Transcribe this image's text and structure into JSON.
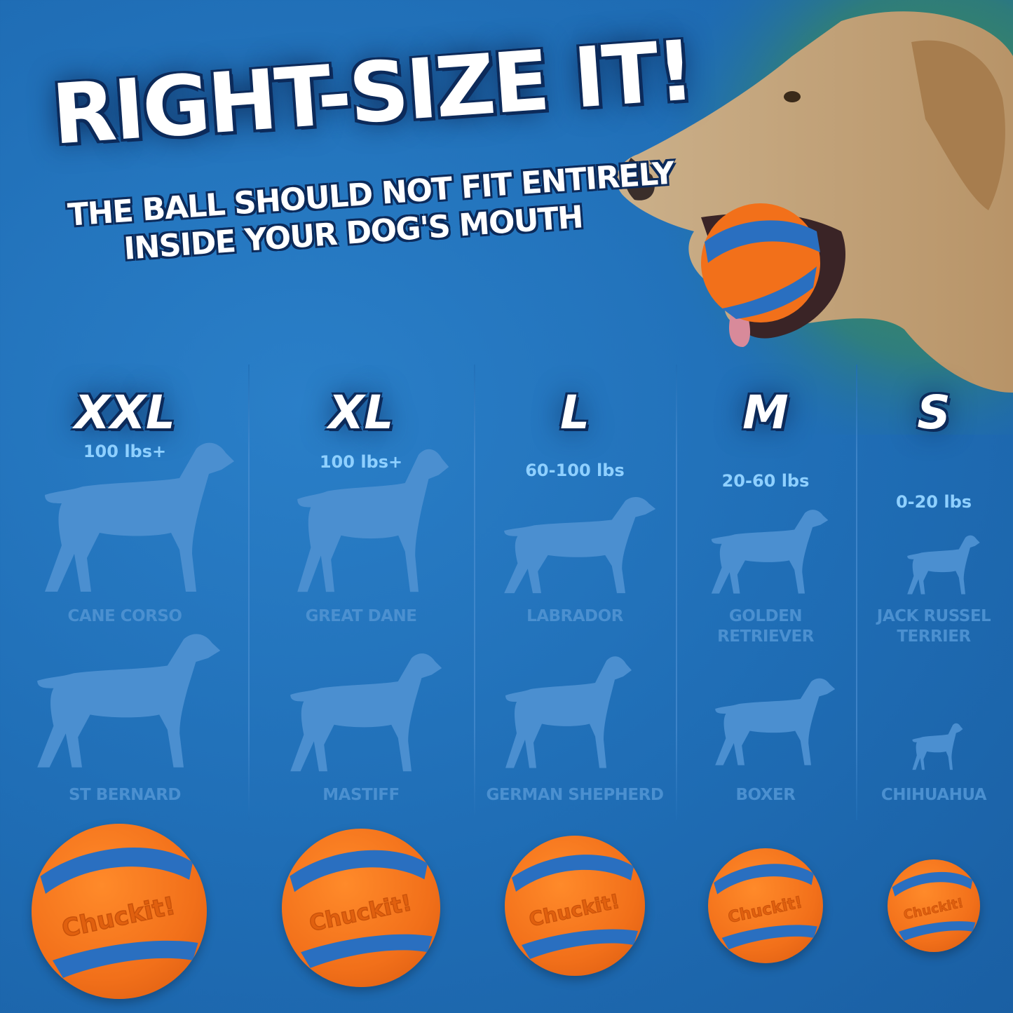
{
  "header": {
    "title": "RIGHT-SIZE IT!",
    "subtitle_line1": "THE BALL SHOULD NOT FIT ENTIRELY",
    "subtitle_line2": "INSIDE YOUR DOG'S MOUTH"
  },
  "brand": "Chuckit!",
  "colors": {
    "background": "#1f6db5",
    "ball_orange": "#f2701a",
    "ball_blue": "#2a6fc0",
    "silhouette": "#4b8fd0",
    "weight_text": "#8fd0ff"
  },
  "sizes": [
    {
      "size": "XXL",
      "weight": "100 lbs+",
      "breeds": [
        "CANE CORSO",
        "ST BERNARD"
      ]
    },
    {
      "size": "XL",
      "weight": "100 lbs+",
      "breeds": [
        "GREAT DANE",
        "MASTIFF"
      ]
    },
    {
      "size": "L",
      "weight": "60-100 lbs",
      "breeds": [
        "LABRADOR",
        "GERMAN SHEPHERD"
      ]
    },
    {
      "size": "M",
      "weight": "20-60 lbs",
      "breeds": [
        "GOLDEN RETRIEVER",
        "BOXER"
      ]
    },
    {
      "size": "S",
      "weight": "0-20 lbs",
      "breeds": [
        "JACK RUSSEL TERRIER",
        "CHIHUAHUA"
      ]
    }
  ]
}
